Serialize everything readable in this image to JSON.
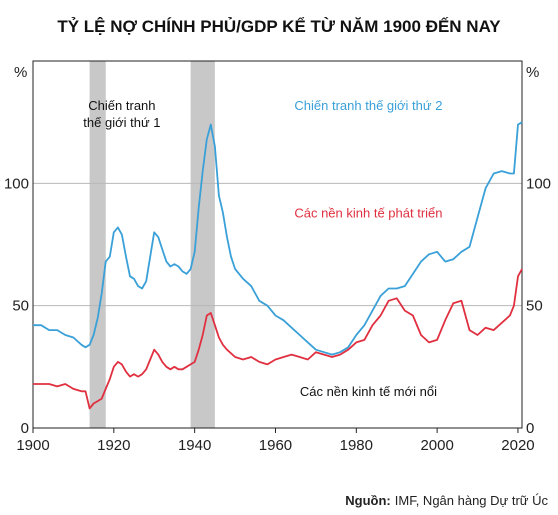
{
  "chart_data": {
    "type": "line",
    "title": "TỶ LỆ NỢ CHÍNH PHỦ/GDP KỂ TỪ NĂM 1900 ĐẾN NAY",
    "ylabel_left": "%",
    "ylabel_right": "%",
    "xlim": [
      1900,
      2021
    ],
    "ylim": [
      0,
      150
    ],
    "x_ticks": [
      1900,
      1920,
      1940,
      1960,
      1980,
      2000,
      2020
    ],
    "y_ticks": [
      0,
      50,
      100
    ],
    "grid": "horizontal",
    "shaded_periods": [
      {
        "label": "Chiến tranh thế giới thứ 1",
        "start": 1914,
        "end": 1918
      },
      {
        "label": "Chiến tranh thế giới thứ 2",
        "start": 1939,
        "end": 1945
      }
    ],
    "series": [
      {
        "name": "Các nền kinh tế phát triển",
        "color": "#3aa0d8",
        "x": [
          1900,
          1902,
          1904,
          1906,
          1908,
          1910,
          1912,
          1913,
          1914,
          1915,
          1916,
          1917,
          1918,
          1919,
          1920,
          1921,
          1922,
          1923,
          1924,
          1925,
          1926,
          1927,
          1928,
          1929,
          1930,
          1931,
          1932,
          1933,
          1934,
          1935,
          1936,
          1937,
          1938,
          1939,
          1940,
          1941,
          1942,
          1943,
          1944,
          1945,
          1946,
          1947,
          1948,
          1949,
          1950,
          1952,
          1954,
          1956,
          1958,
          1960,
          1962,
          1964,
          1966,
          1968,
          1970,
          1972,
          1974,
          1976,
          1978,
          1980,
          1982,
          1984,
          1986,
          1988,
          1990,
          1992,
          1994,
          1996,
          1998,
          2000,
          2002,
          2004,
          2006,
          2008,
          2010,
          2012,
          2014,
          2016,
          2018,
          2019,
          2020,
          2021
        ],
        "values": [
          42,
          42,
          40,
          40,
          38,
          37,
          34,
          33,
          34,
          38,
          45,
          55,
          68,
          70,
          80,
          82,
          79,
          70,
          62,
          61,
          58,
          57,
          60,
          70,
          80,
          78,
          73,
          68,
          66,
          67,
          66,
          64,
          63,
          65,
          72,
          90,
          105,
          118,
          124,
          115,
          95,
          88,
          78,
          70,
          65,
          61,
          58,
          52,
          50,
          46,
          44,
          41,
          38,
          35,
          32,
          31,
          30,
          31,
          33,
          38,
          42,
          48,
          54,
          57,
          57,
          58,
          63,
          68,
          71,
          72,
          68,
          69,
          72,
          74,
          86,
          98,
          104,
          105,
          104,
          104,
          124,
          125
        ]
      },
      {
        "name": "Các nền kinh tế mới nổi",
        "color": "#e03040",
        "x": [
          1900,
          1902,
          1904,
          1906,
          1908,
          1910,
          1912,
          1913,
          1914,
          1915,
          1916,
          1917,
          1918,
          1919,
          1920,
          1921,
          1922,
          1923,
          1924,
          1925,
          1926,
          1927,
          1928,
          1929,
          1930,
          1931,
          1932,
          1933,
          1934,
          1935,
          1936,
          1937,
          1938,
          1939,
          1940,
          1941,
          1942,
          1943,
          1944,
          1945,
          1946,
          1947,
          1948,
          1950,
          1952,
          1954,
          1956,
          1958,
          1960,
          1962,
          1964,
          1966,
          1968,
          1970,
          1972,
          1974,
          1976,
          1978,
          1980,
          1982,
          1984,
          1986,
          1988,
          1990,
          1992,
          1994,
          1996,
          1998,
          2000,
          2002,
          2004,
          2006,
          2008,
          2010,
          2012,
          2014,
          2016,
          2018,
          2019,
          2020,
          2021
        ],
        "values": [
          18,
          18,
          18,
          17,
          18,
          16,
          15,
          15,
          8,
          10,
          11,
          12,
          16,
          20,
          25,
          27,
          26,
          23,
          21,
          22,
          21,
          22,
          24,
          28,
          32,
          30,
          27,
          25,
          24,
          25,
          24,
          24,
          25,
          26,
          27,
          32,
          38,
          46,
          47,
          42,
          37,
          34,
          32,
          29,
          28,
          29,
          27,
          26,
          28,
          29,
          30,
          29,
          28,
          31,
          30,
          29,
          30,
          32,
          35,
          36,
          42,
          46,
          52,
          53,
          48,
          46,
          38,
          35,
          36,
          44,
          51,
          52,
          40,
          38,
          41,
          40,
          43,
          46,
          50,
          62,
          65
        ]
      }
    ],
    "annotations": [
      {
        "text": "Chiến tranh",
        "color": "#111111",
        "at": [
          1922,
          130
        ]
      },
      {
        "text": "thế giới thứ 1",
        "color": "#111111",
        "at": [
          1922,
          123
        ]
      },
      {
        "text": "Chiến tranh thế giới thứ 2",
        "color": "#3aa0d8",
        "at": [
          1983,
          130
        ]
      },
      {
        "text": "Các nền kinh tế phát triển",
        "color": "#e03040",
        "at": [
          1983,
          86
        ]
      },
      {
        "text": "Các nền kinh tế mới nổi",
        "color": "#111111",
        "at": [
          1983,
          13
        ]
      }
    ]
  },
  "source": {
    "label": "Nguồn:",
    "text": "IMF, Ngân hàng Dự trữ Úc"
  }
}
